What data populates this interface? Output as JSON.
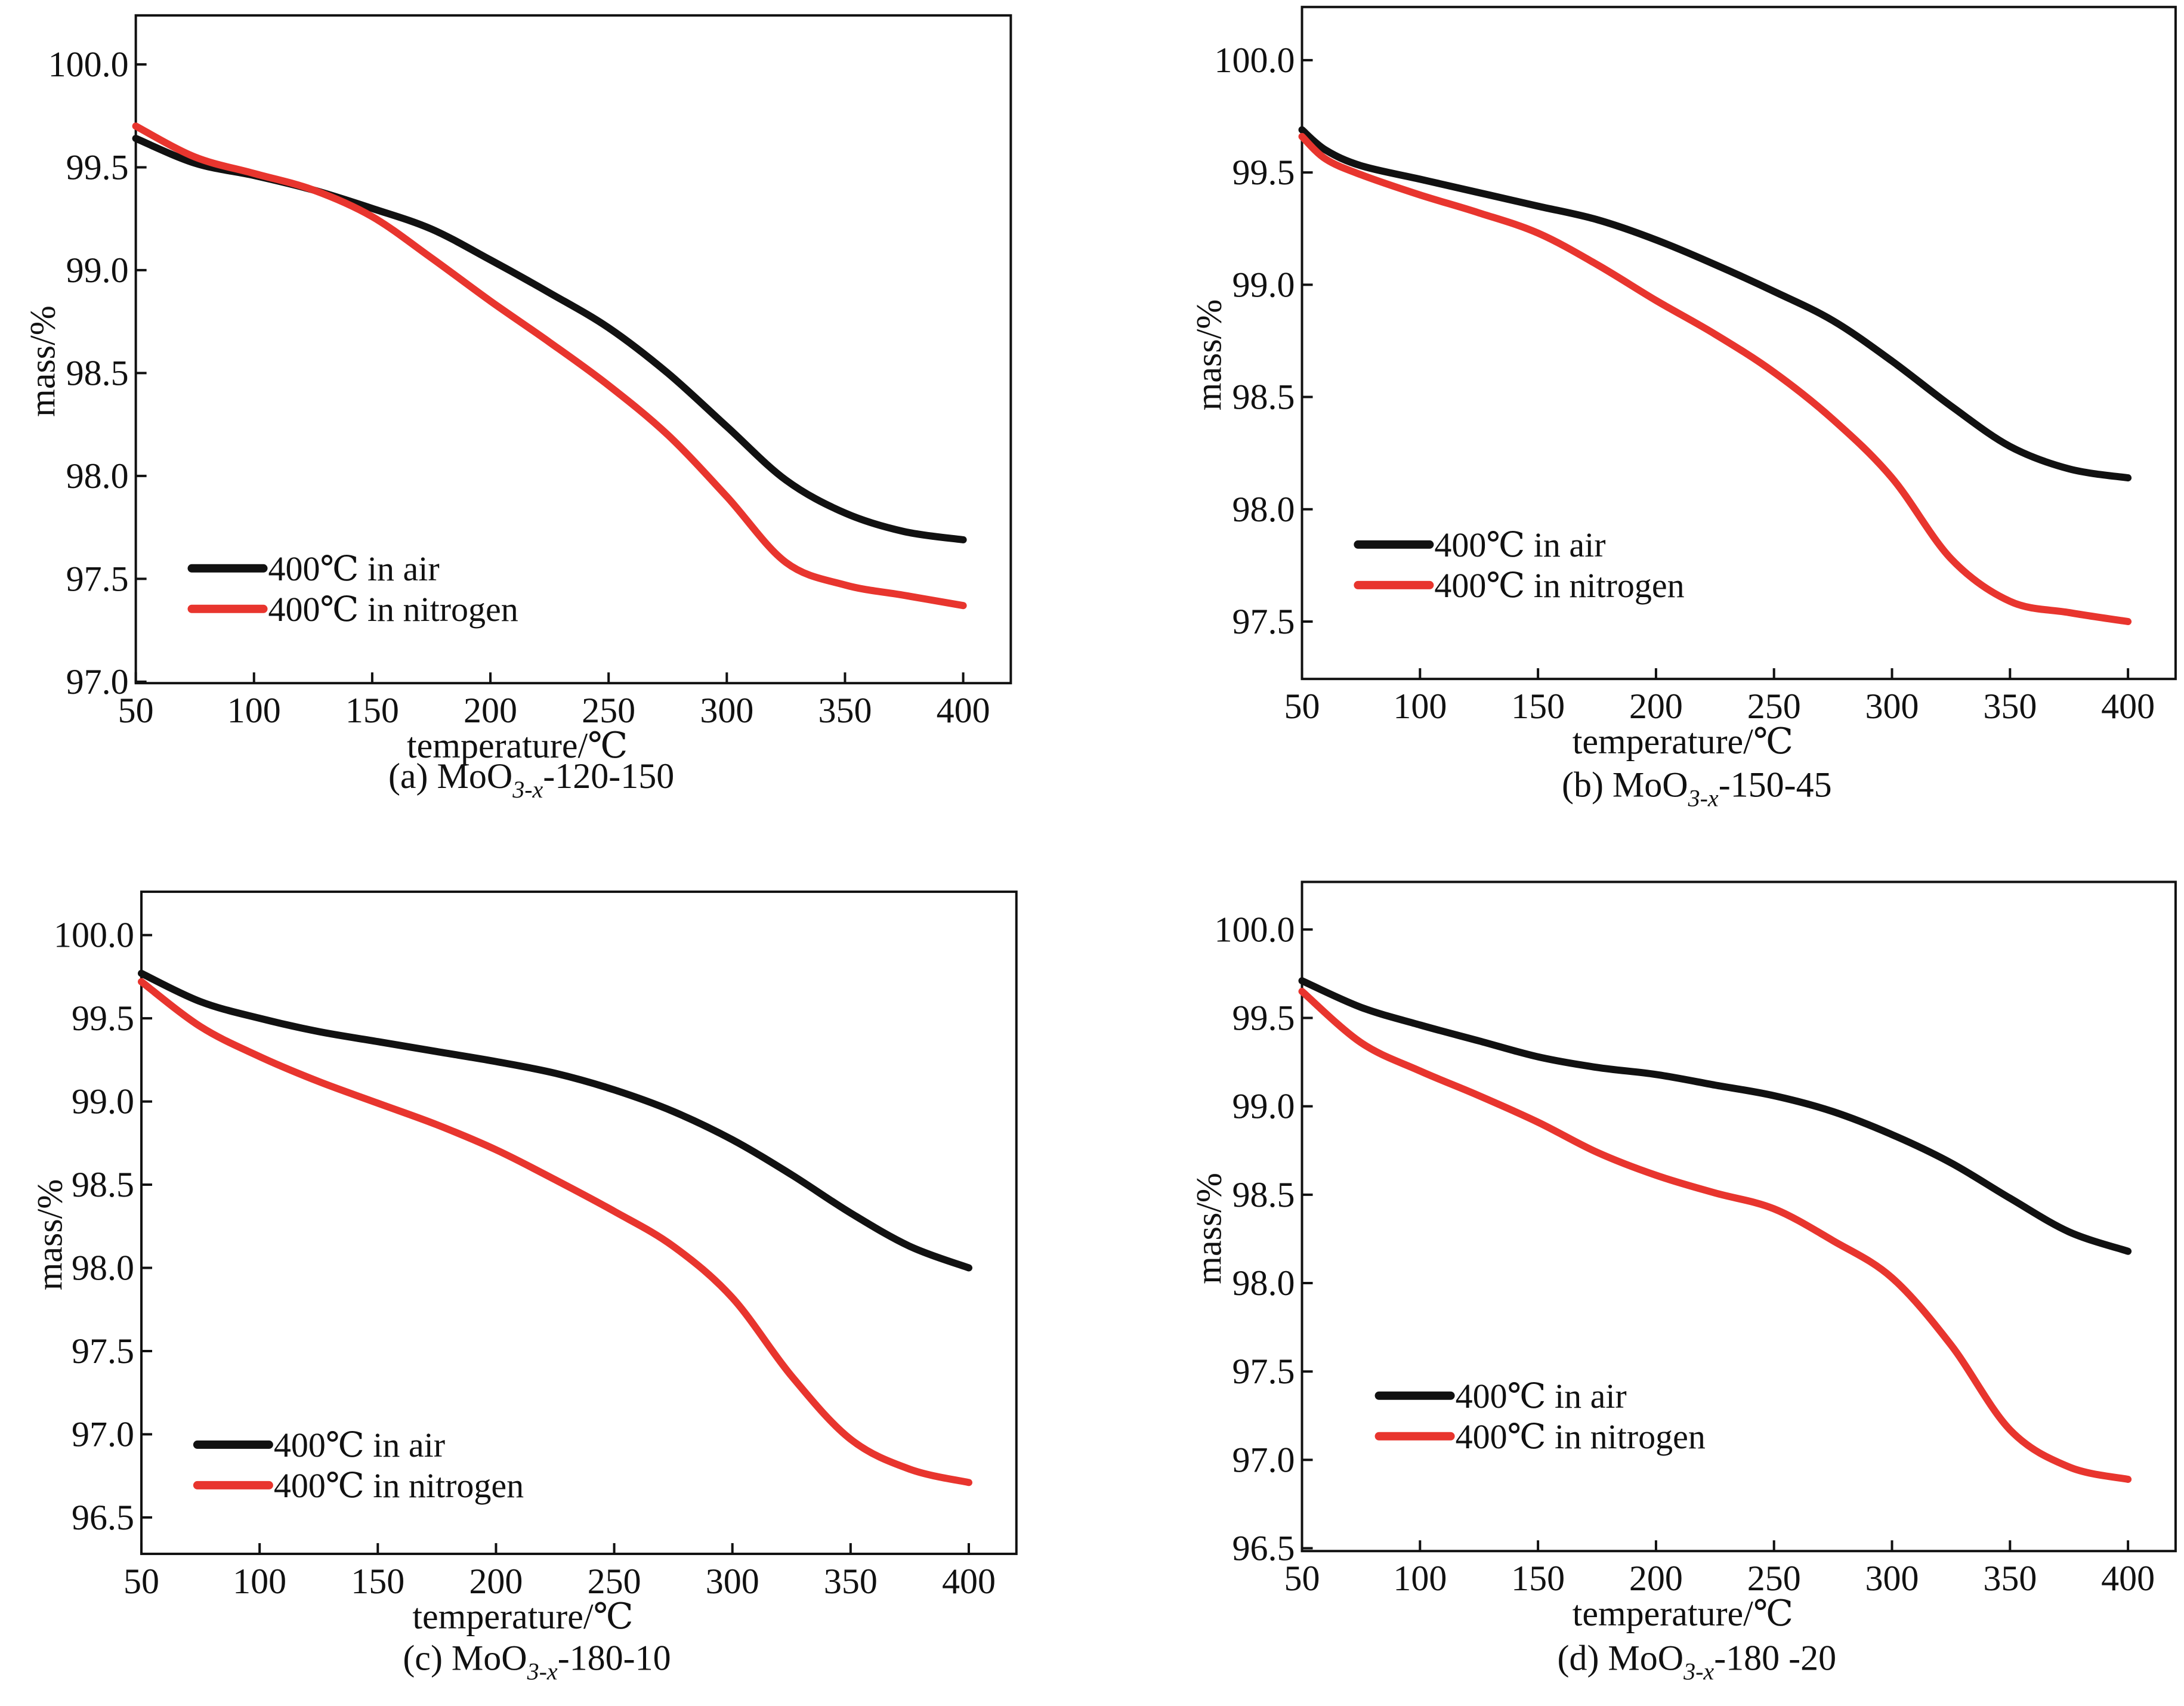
{
  "figure": {
    "legend_labels": [
      "400℃ in  air",
      "400℃ in nitrogen"
    ],
    "series_colors": {
      "air": "#111111",
      "nitrogen": "#e8352e"
    }
  },
  "chart_data": [
    {
      "type": "line",
      "id": "a",
      "caption_prefix": "(a) MoO",
      "caption_sub": "3-x",
      "caption_suffix": "-120-150",
      "xlabel": "temperature/℃",
      "ylabel": "mass/%",
      "xlim": [
        50,
        420
      ],
      "ylim": [
        97.0,
        100.25
      ],
      "xticks": [
        50,
        100,
        150,
        200,
        250,
        300,
        350,
        400
      ],
      "yticks": [
        97.0,
        97.5,
        98.0,
        98.5,
        99.0,
        99.5,
        100.0
      ],
      "ytick_labels": [
        "97.0",
        "97.5",
        "98.0",
        "98.5",
        "99.0",
        "99.5",
        "100.0"
      ],
      "legend_position": "lower-left",
      "grid": false,
      "series": [
        {
          "name": "400℃ in  air",
          "key": "air",
          "x": [
            50,
            75,
            100,
            125,
            150,
            175,
            200,
            225,
            250,
            275,
            300,
            325,
            350,
            375,
            400
          ],
          "y": [
            99.64,
            99.52,
            99.46,
            99.39,
            99.3,
            99.2,
            99.05,
            98.89,
            98.72,
            98.5,
            98.24,
            97.98,
            97.82,
            97.73,
            97.69
          ]
        },
        {
          "name": "400℃ in nitrogen",
          "key": "nitrogen",
          "x": [
            50,
            75,
            100,
            125,
            150,
            175,
            200,
            225,
            250,
            275,
            300,
            325,
            350,
            375,
            400
          ],
          "y": [
            99.7,
            99.55,
            99.47,
            99.39,
            99.26,
            99.06,
            98.85,
            98.65,
            98.44,
            98.2,
            97.9,
            97.58,
            97.47,
            97.42,
            97.37
          ]
        }
      ]
    },
    {
      "type": "line",
      "id": "b",
      "caption_prefix": "(b) MoO",
      "caption_sub": "3-x",
      "caption_suffix": "-150-45",
      "xlabel": "temperature/℃",
      "ylabel": "mass/%",
      "xlim": [
        50,
        420
      ],
      "ylim": [
        97.27,
        100.23
      ],
      "xticks": [
        50,
        100,
        150,
        200,
        250,
        300,
        350,
        400
      ],
      "yticks": [
        97.5,
        98.0,
        98.5,
        99.0,
        99.5,
        100.0
      ],
      "ytick_labels": [
        "97.5",
        "98.0",
        "98.5",
        "99.0",
        "99.5",
        "100.0"
      ],
      "legend_position": "lower-left",
      "grid": false,
      "series": [
        {
          "name": "400℃ in  air",
          "key": "air",
          "x": [
            50,
            60,
            75,
            100,
            125,
            150,
            175,
            200,
            225,
            250,
            275,
            300,
            325,
            350,
            375,
            400
          ],
          "y": [
            99.69,
            99.6,
            99.53,
            99.47,
            99.41,
            99.35,
            99.29,
            99.2,
            99.09,
            98.97,
            98.84,
            98.66,
            98.46,
            98.28,
            98.18,
            98.14
          ]
        },
        {
          "name": "400℃ in nitrogen",
          "key": "nitrogen",
          "x": [
            50,
            60,
            75,
            100,
            125,
            150,
            175,
            200,
            225,
            250,
            275,
            300,
            325,
            350,
            375,
            400
          ],
          "y": [
            99.66,
            99.56,
            99.49,
            99.4,
            99.32,
            99.23,
            99.09,
            98.93,
            98.78,
            98.61,
            98.4,
            98.14,
            97.78,
            97.59,
            97.54,
            97.5
          ]
        }
      ]
    },
    {
      "type": "line",
      "id": "c",
      "caption_prefix": "(c) MoO",
      "caption_sub": "3-x",
      "caption_suffix": "-180-10",
      "xlabel": "temperature/℃",
      "ylabel": "mass/%",
      "xlim": [
        50,
        420
      ],
      "ylim": [
        96.28,
        100.25
      ],
      "xticks": [
        50,
        100,
        150,
        200,
        250,
        300,
        350,
        400
      ],
      "yticks": [
        96.5,
        97.0,
        97.5,
        98.0,
        98.5,
        99.0,
        99.5,
        100.0
      ],
      "ytick_labels": [
        "96.5",
        "97.0",
        "97.5",
        "98.0",
        "98.5",
        "99.0",
        "99.5",
        "100.0"
      ],
      "legend_position": "lower-left",
      "grid": false,
      "series": [
        {
          "name": "400℃ in  air",
          "key": "air",
          "x": [
            50,
            75,
            100,
            125,
            150,
            175,
            200,
            225,
            250,
            275,
            300,
            325,
            350,
            375,
            400
          ],
          "y": [
            99.77,
            99.6,
            99.5,
            99.42,
            99.36,
            99.3,
            99.24,
            99.17,
            99.07,
            98.94,
            98.77,
            98.56,
            98.33,
            98.13,
            98.0
          ]
        },
        {
          "name": "400℃ in nitrogen",
          "key": "nitrogen",
          "x": [
            50,
            75,
            100,
            125,
            150,
            175,
            200,
            225,
            250,
            275,
            300,
            325,
            350,
            375,
            400
          ],
          "y": [
            99.72,
            99.45,
            99.27,
            99.12,
            98.99,
            98.86,
            98.71,
            98.53,
            98.34,
            98.13,
            97.82,
            97.35,
            96.97,
            96.79,
            96.71
          ]
        }
      ]
    },
    {
      "type": "line",
      "id": "d",
      "caption_prefix": "(d) MoO",
      "caption_sub": "3-x",
      "caption_suffix": "-180 -20",
      "xlabel": "temperature/℃",
      "ylabel": "mass/%",
      "xlim": [
        50,
        420
      ],
      "ylim": [
        96.45,
        100.25
      ],
      "xticks": [
        50,
        100,
        150,
        200,
        250,
        300,
        350,
        400
      ],
      "yticks": [
        96.5,
        97.0,
        97.5,
        98.0,
        98.5,
        99.0,
        99.5,
        100.0
      ],
      "ytick_labels": [
        "96.5",
        "97.0",
        "97.5",
        "98.0",
        "98.5",
        "99.0",
        "99.5",
        "100.0"
      ],
      "legend_position": "lower-left",
      "grid": false,
      "series": [
        {
          "name": "400℃ in  air",
          "key": "air",
          "x": [
            50,
            75,
            100,
            125,
            150,
            175,
            200,
            225,
            250,
            275,
            300,
            325,
            350,
            375,
            400
          ],
          "y": [
            99.71,
            99.56,
            99.46,
            99.37,
            99.28,
            99.22,
            99.18,
            99.12,
            99.06,
            98.97,
            98.84,
            98.68,
            98.48,
            98.29,
            98.18
          ]
        },
        {
          "name": "400℃ in nitrogen",
          "key": "nitrogen",
          "x": [
            50,
            75,
            100,
            125,
            150,
            175,
            200,
            225,
            250,
            275,
            300,
            325,
            350,
            375,
            400
          ],
          "y": [
            99.65,
            99.36,
            99.2,
            99.06,
            98.91,
            98.74,
            98.61,
            98.51,
            98.42,
            98.24,
            98.03,
            97.65,
            97.17,
            96.96,
            96.89
          ]
        }
      ]
    }
  ]
}
